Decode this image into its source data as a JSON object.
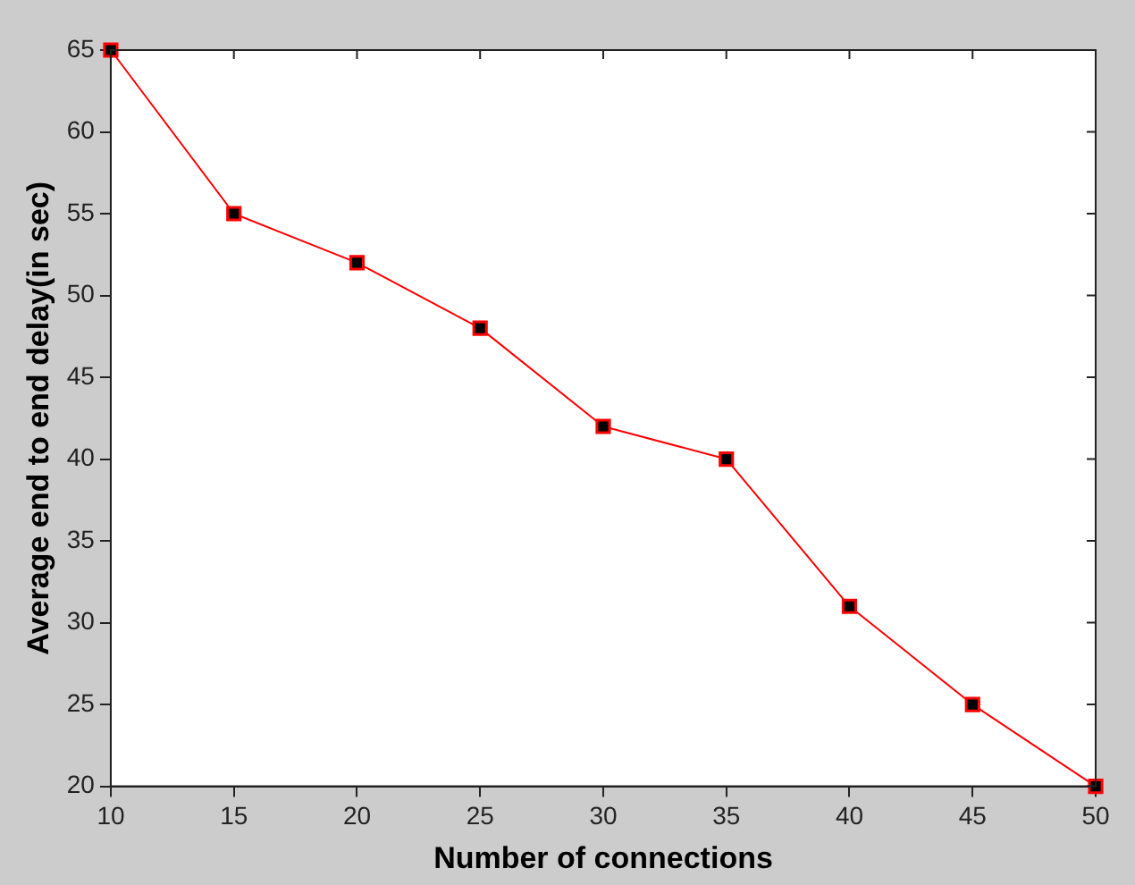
{
  "chart_data": {
    "type": "line",
    "xlabel": "Number of connections",
    "ylabel": "Average end to end delay(in sec)",
    "x": [
      10,
      15,
      20,
      25,
      30,
      35,
      40,
      45,
      50
    ],
    "series": [
      {
        "color": "#ff0000",
        "values": [
          65,
          55,
          52,
          48,
          42,
          40,
          31,
          25,
          20
        ]
      }
    ],
    "xlim": [
      10,
      50
    ],
    "xticks": [
      10,
      15,
      20,
      25,
      30,
      35,
      40,
      45,
      50
    ],
    "ylim": [
      20,
      65
    ],
    "yticks": [
      20,
      25,
      30,
      35,
      40,
      45,
      50,
      55,
      60,
      65
    ],
    "marker": "square",
    "line_style": "solid",
    "legend": false,
    "grid": false
  }
}
